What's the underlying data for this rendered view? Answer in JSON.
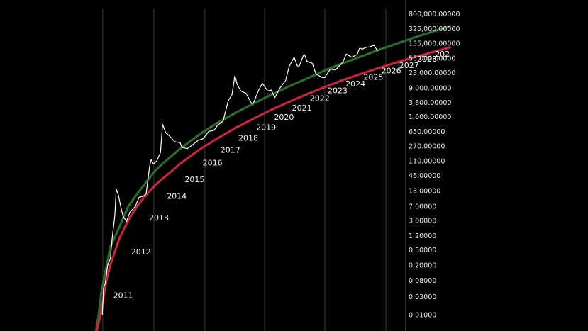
{
  "chart_data": {
    "type": "line",
    "title": "",
    "xlabel": "",
    "ylabel": "",
    "y_scale": "log",
    "ylim": [
      0.005,
      800000
    ],
    "xlim": [
      2009.5,
      2030
    ],
    "grid": "vertical",
    "y_ticks": [
      800000,
      325000,
      135000,
      55000,
      23000,
      9000,
      3800,
      1600,
      650,
      270,
      110,
      46,
      18,
      7,
      3,
      1.2,
      0.5,
      0.2,
      0.08,
      0.03,
      0.01
    ],
    "y_tick_labels": [
      "800,000.00000",
      "325,000.00000",
      "135,000.00000",
      "55,000.00000",
      "23,000.00000",
      "9,000.00000",
      "3,800.00000",
      "1,600.00000",
      "650.00000",
      "270.00000",
      "110.00000",
      "46.00000",
      "18.00000",
      "7.00000",
      "3.00000",
      "1.20000",
      "0.50000",
      "0.20000",
      "0.08000",
      "0.03000",
      "0.01000"
    ],
    "year_labels": [
      {
        "text": "2011",
        "x": 2011.0,
        "y": 0.05
      },
      {
        "text": "2012",
        "x": 2012.0,
        "y": 0.7
      },
      {
        "text": "2013",
        "x": 2013.0,
        "y": 5.5
      },
      {
        "text": "2014",
        "x": 2014.0,
        "y": 20
      },
      {
        "text": "2015",
        "x": 2015.0,
        "y": 55
      },
      {
        "text": "2016",
        "x": 2016.0,
        "y": 150
      },
      {
        "text": "2017",
        "x": 2017.0,
        "y": 330
      },
      {
        "text": "2018",
        "x": 2018.0,
        "y": 680
      },
      {
        "text": "2019",
        "x": 2019.0,
        "y": 1300
      },
      {
        "text": "2020",
        "x": 2020.0,
        "y": 2400
      },
      {
        "text": "2021",
        "x": 2021.0,
        "y": 4200
      },
      {
        "text": "2022",
        "x": 2022.0,
        "y": 7500
      },
      {
        "text": "2023",
        "x": 2023.0,
        "y": 12000
      },
      {
        "text": "2024",
        "x": 2024.0,
        "y": 18000
      },
      {
        "text": "2025",
        "x": 2025.0,
        "y": 27000
      },
      {
        "text": "2026",
        "x": 2026.0,
        "y": 40000
      },
      {
        "text": "2027",
        "x": 2027.0,
        "y": 55000
      },
      {
        "text": "2028",
        "x": 2028.0,
        "y": 80000
      },
      {
        "text": "202",
        "x": 2029.0,
        "y": 110000
      }
    ],
    "series": [
      {
        "color": "#ffffff",
        "x": [
          2010.55,
          2010.62,
          2010.72,
          2010.85,
          2011.0,
          2011.1,
          2011.25,
          2011.33,
          2011.45,
          2011.55,
          2011.7,
          2011.9,
          2012.1,
          2012.4,
          2012.6,
          2012.85,
          2013.0,
          2013.2,
          2013.28,
          2013.4,
          2013.6,
          2013.8,
          2013.92,
          2014.0,
          2014.1,
          2014.3,
          2014.6,
          2014.9,
          2015.0,
          2015.3,
          2015.6,
          2015.9,
          2016.2,
          2016.5,
          2016.8,
          2017.0,
          2017.3,
          2017.6,
          2017.8,
          2017.97,
          2018.1,
          2018.3,
          2018.6,
          2018.9,
          2019.0,
          2019.3,
          2019.5,
          2019.8,
          2020.0,
          2020.2,
          2020.5,
          2020.8,
          2021.0,
          2021.28,
          2021.45,
          2021.55,
          2021.8,
          2021.87,
          2022.0,
          2022.3,
          2022.5,
          2022.85,
          2023.0,
          2023.3,
          2023.6,
          2023.9,
          2024.0,
          2024.2,
          2024.5,
          2024.8,
          2024.95,
          2025.1,
          2025.3,
          2025.5,
          2025.75,
          2025.85,
          2025.95
        ],
        "y": [
          0.01,
          0.05,
          0.07,
          0.2,
          0.3,
          1.0,
          4,
          20,
          14,
          8,
          4,
          2.8,
          5,
          7,
          12,
          13,
          15,
          80,
          120,
          90,
          110,
          180,
          1000,
          800,
          600,
          500,
          350,
          330,
          250,
          230,
          290,
          380,
          420,
          650,
          700,
          950,
          1200,
          4200,
          6000,
          19000,
          11000,
          7500,
          6500,
          3500,
          3600,
          8000,
          12000,
          7500,
          8000,
          5000,
          9200,
          14000,
          33000,
          58000,
          35000,
          33000,
          65000,
          67000,
          45000,
          40000,
          21000,
          17000,
          17000,
          28000,
          27000,
          38000,
          42000,
          70000,
          58000,
          68000,
          100000,
          95000,
          105000,
          108000,
          120000,
          100000,
          85000
        ]
      },
      {
        "color": "#2e6a2e",
        "x": [
          2010.2,
          2010.35,
          2010.5,
          2010.7,
          2011.0,
          2011.5,
          2012.0,
          2012.5,
          2013.0,
          2013.5,
          2014.0,
          2015.0,
          2016.0,
          2017.0,
          2018.0,
          2019.0,
          2020.0,
          2021.0,
          2022.0,
          2023.0,
          2024.0,
          2025.0,
          2026.0,
          2027.0,
          2028.0,
          2029.0,
          2030.0
        ],
        "y": [
          0.004,
          0.01,
          0.04,
          0.12,
          0.6,
          2.0,
          7,
          15,
          30,
          60,
          100,
          250,
          550,
          1100,
          2000,
          3500,
          6000,
          10000,
          16000,
          26000,
          40000,
          60000,
          90000,
          130000,
          190000,
          270000,
          380000
        ]
      },
      {
        "color": "#c0283c",
        "x": [
          2010.25,
          2010.4,
          2010.6,
          2010.8,
          2011.0,
          2011.5,
          2012.0,
          2012.5,
          2013.0,
          2013.5,
          2014.0,
          2015.0,
          2016.0,
          2017.0,
          2018.0,
          2019.0,
          2020.0,
          2021.0,
          2022.0,
          2023.0,
          2024.0,
          2025.0,
          2026.0,
          2027.0,
          2028.0,
          2029.0,
          2030.0
        ],
        "y": [
          0.004,
          0.008,
          0.025,
          0.09,
          0.2,
          1.0,
          3,
          7,
          14,
          25,
          40,
          100,
          220,
          430,
          800,
          1400,
          2400,
          3900,
          6200,
          9600,
          14500,
          21000,
          30000,
          42000,
          58000,
          78000,
          105000
        ]
      }
    ]
  }
}
